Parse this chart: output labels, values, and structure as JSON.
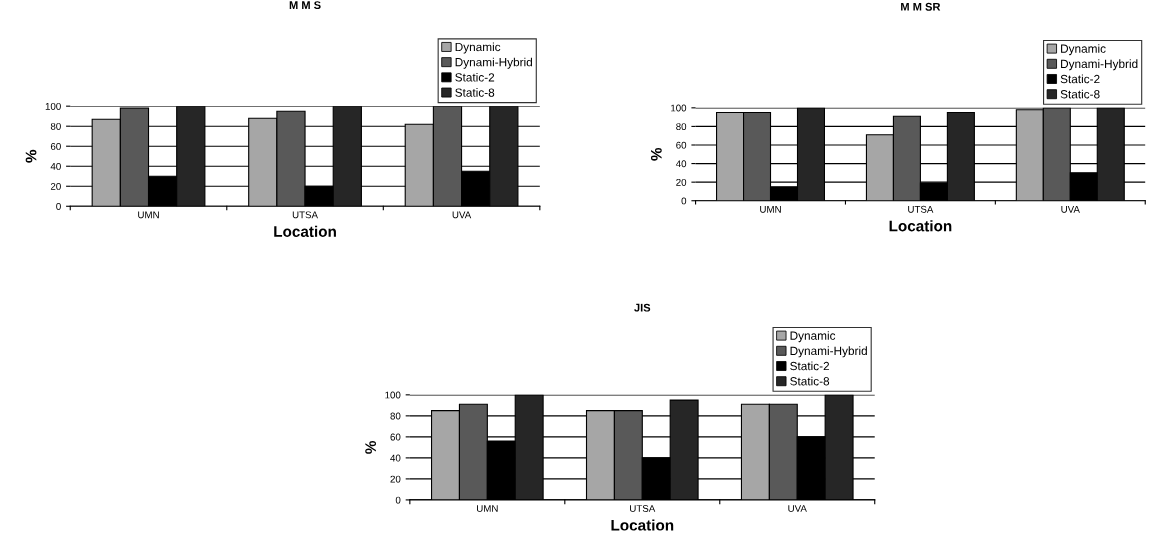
{
  "chart_data": [
    {
      "type": "bar",
      "title": "M M S",
      "xlabel": "Location",
      "ylabel": "%",
      "categories": [
        "UMN",
        "UTSA",
        "UVA"
      ],
      "ylim": [
        0,
        100
      ],
      "yticks": [
        0,
        20,
        40,
        60,
        80,
        100
      ],
      "grid": "y",
      "legend": "top right",
      "series": [
        {
          "name": "Dynamic",
          "color": "#a6a6a6",
          "values": [
            87,
            88,
            82
          ]
        },
        {
          "name": "Dynami-Hybrid",
          "color": "#595959",
          "values": [
            98,
            95,
            100
          ]
        },
        {
          "name": "Static-2",
          "color": "#000000",
          "values": [
            30,
            20,
            35
          ]
        },
        {
          "name": "Static-8",
          "color": "#262626",
          "values": [
            100,
            100,
            100
          ]
        }
      ]
    },
    {
      "type": "bar",
      "title": "M M SR",
      "xlabel": "Location",
      "ylabel": "%",
      "categories": [
        "UMN",
        "UTSA",
        "UVA"
      ],
      "ylim": [
        0,
        100
      ],
      "yticks": [
        0,
        20,
        40,
        60,
        80,
        100
      ],
      "grid": "y",
      "legend": "top right",
      "series": [
        {
          "name": "Dynamic",
          "color": "#a6a6a6",
          "values": [
            95,
            71,
            98
          ]
        },
        {
          "name": "Dynami-Hybrid",
          "color": "#595959",
          "values": [
            95,
            91,
            100
          ]
        },
        {
          "name": "Static-2",
          "color": "#000000",
          "values": [
            15,
            19,
            30
          ]
        },
        {
          "name": "Static-8",
          "color": "#262626",
          "values": [
            100,
            95,
            100
          ]
        }
      ]
    },
    {
      "type": "bar",
      "title": "JIS",
      "xlabel": "Location",
      "ylabel": "%",
      "categories": [
        "UMN",
        "UTSA",
        "UVA"
      ],
      "ylim": [
        0,
        100
      ],
      "yticks": [
        0,
        20,
        40,
        60,
        80,
        100
      ],
      "grid": "y",
      "legend": "top right",
      "series": [
        {
          "name": "Dynamic",
          "color": "#a6a6a6",
          "values": [
            85,
            85,
            91
          ]
        },
        {
          "name": "Dynami-Hybrid",
          "color": "#595959",
          "values": [
            91,
            85,
            91
          ]
        },
        {
          "name": "Static-2",
          "color": "#000000",
          "values": [
            56,
            40,
            60
          ]
        },
        {
          "name": "Static-8",
          "color": "#262626",
          "values": [
            100,
            95,
            100
          ]
        }
      ]
    }
  ]
}
